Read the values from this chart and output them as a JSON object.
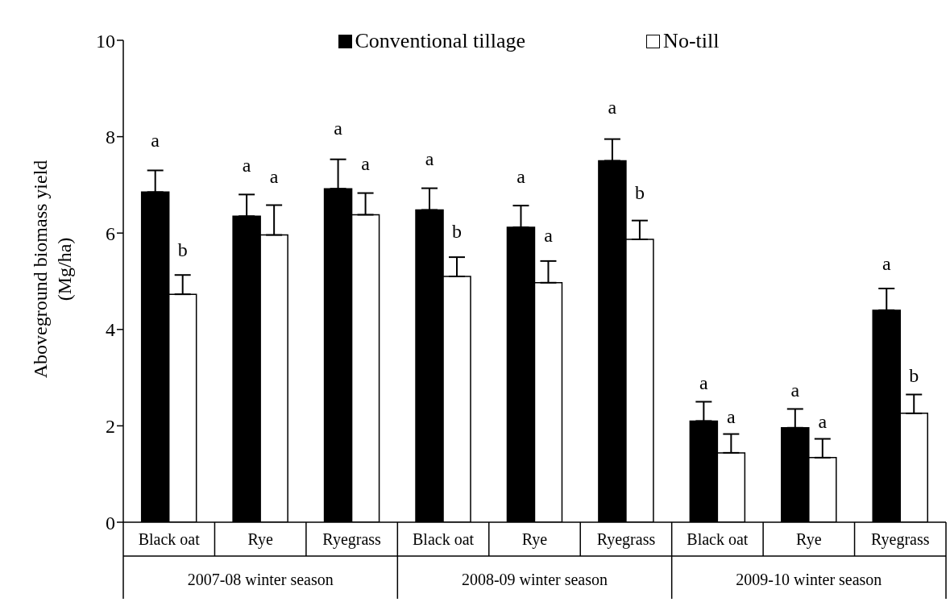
{
  "chart_data": {
    "type": "bar",
    "ylabel": "Aboveground biomass yield (Mg/ha)",
    "categories": [
      "Black oat",
      "Rye",
      "Ryegrass",
      "Black oat",
      "Rye",
      "Ryegrass",
      "Black oat",
      "Rye",
      "Ryegrass"
    ],
    "series": [
      {
        "name": "Conventional tillage",
        "color": "#000000",
        "values": [
          6.85,
          6.35,
          6.92,
          6.48,
          6.12,
          7.5,
          2.1,
          1.96,
          4.4
        ],
        "errors": [
          [
            6.85,
            7.3
          ],
          [
            6.35,
            6.8
          ],
          [
            6.92,
            7.53
          ],
          [
            6.48,
            6.93
          ],
          [
            6.12,
            6.57
          ],
          [
            7.5,
            7.95
          ],
          [
            2.1,
            2.5
          ],
          [
            1.96,
            2.35
          ],
          [
            4.4,
            4.85
          ]
        ],
        "value_labels": [
          "a",
          "a",
          "a",
          "a",
          "a",
          "a",
          "a",
          "a",
          "a"
        ]
      },
      {
        "name": "No-till",
        "color": "#ffffff",
        "values": [
          4.73,
          5.96,
          6.38,
          5.1,
          4.97,
          5.87,
          1.44,
          1.34,
          2.26
        ],
        "errors": [
          [
            4.73,
            5.13
          ],
          [
            5.96,
            6.58
          ],
          [
            6.38,
            6.83
          ],
          [
            5.1,
            5.5
          ],
          [
            4.97,
            5.42
          ],
          [
            5.87,
            6.26
          ],
          [
            1.44,
            1.83
          ],
          [
            1.34,
            1.73
          ],
          [
            2.26,
            2.65
          ]
        ],
        "value_labels": [
          "b",
          "a",
          "a",
          "b",
          "a",
          "b",
          "a",
          "a",
          "b"
        ]
      }
    ],
    "annotations": [
      "2007-08 winter season",
      "2008-09 winter season",
      "2009-10 winter season"
    ],
    "ylim": [
      0,
      10
    ],
    "yticks": [
      0,
      2,
      4,
      6,
      8,
      10
    ],
    "legend": "top",
    "grid": false
  }
}
